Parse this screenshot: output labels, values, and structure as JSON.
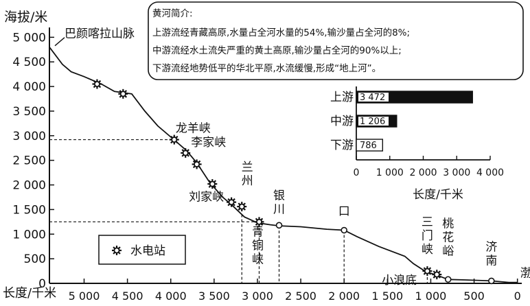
{
  "chart_data": [
    {
      "type": "line",
      "title": "",
      "ylabel": "海拔/米",
      "xlabel": "长度/千米",
      "xlim": [
        5400,
        -50
      ],
      "ylim": [
        0,
        5200
      ],
      "x_reversed": true,
      "x_ticks": [
        5000,
        4500,
        4000,
        3500,
        3000,
        2500,
        2000,
        1500,
        1000,
        500,
        0
      ],
      "x_tick_labels": [
        "5 000",
        "4 500",
        "4 000",
        "3 500",
        "3 000",
        "2 500",
        "2 000",
        "1 500",
        "1 000",
        "500",
        "0"
      ],
      "y_ticks": [
        0,
        500,
        1000,
        1500,
        2000,
        2500,
        3000,
        3500,
        4000,
        4500,
        5000
      ],
      "y_tick_labels": [
        "0",
        "500",
        "1 000",
        "1 500",
        "2 000",
        "2 500",
        "3 000",
        "3 500",
        "4 000",
        "4 500",
        "5 000"
      ],
      "series": [
        {
          "x": [
            5400,
            5250,
            5150,
            5000,
            4800,
            4650,
            4450,
            4300,
            4150,
            3950,
            3820,
            3700,
            3550,
            3400,
            3300,
            3150,
            3000,
            2850,
            2750,
            2500,
            2200,
            2000,
            1850,
            1600,
            1300,
            1200,
            1050,
            950,
            800,
            600,
            300,
            100,
            0
          ],
          "y": [
            4800,
            4450,
            4300,
            4200,
            4050,
            3900,
            3850,
            3500,
            3200,
            2900,
            2700,
            2450,
            2050,
            1750,
            1600,
            1350,
            1230,
            1190,
            1170,
            1150,
            1100,
            1080,
            950,
            750,
            550,
            400,
            230,
            180,
            80,
            70,
            50,
            20,
            20
          ]
        }
      ],
      "stations": [
        {
          "x": 4850,
          "y": 4050
        },
        {
          "x": 4550,
          "y": 3850
        },
        {
          "x": 3960,
          "y": 2920
        },
        {
          "x": 3830,
          "y": 2650
        },
        {
          "x": 3700,
          "y": 2420
        },
        {
          "x": 3520,
          "y": 2020
        },
        {
          "x": 3300,
          "y": 1650
        },
        {
          "x": 3180,
          "y": 1560
        },
        {
          "x": 2980,
          "y": 1250
        },
        {
          "x": 1040,
          "y": 250
        },
        {
          "x": 930,
          "y": 180
        }
      ],
      "points": [
        {
          "x": 2750,
          "y": 1180
        },
        {
          "x": 2000,
          "y": 1080
        },
        {
          "x": 800,
          "y": 80
        },
        {
          "x": 300,
          "y": 50
        }
      ],
      "guides": [
        {
          "y": 2920,
          "x": 3960
        },
        {
          "y": 1250,
          "x": 2980
        }
      ],
      "vlines": [
        3180,
        2980,
        2750,
        2000,
        1040
      ],
      "annotations": [
        {
          "text": "巴颜喀拉山脉",
          "x": 5400,
          "y": 4800
        },
        {
          "text": "龙羊峡",
          "x": 3960,
          "y": 2920
        },
        {
          "text": "李家峡",
          "x": 3830,
          "y": 2650
        },
        {
          "text": "兰州",
          "x": 3180,
          "y": 1560,
          "vertical": true
        },
        {
          "text": "刘家峡",
          "x": 3300,
          "y": 1650
        },
        {
          "text": "银川",
          "x": 2750,
          "y": 1180,
          "vertical": true
        },
        {
          "text": "青铜峡",
          "x": 2980,
          "y": 1250,
          "vertical": true
        },
        {
          "text": "河口",
          "x": 2000,
          "y": 1080,
          "vertical": true
        },
        {
          "text": "三门峡",
          "x": 1040,
          "y": 250,
          "vertical": true
        },
        {
          "text": "桃花峪",
          "x": 800,
          "y": 80,
          "vertical": true
        },
        {
          "text": "小浪底",
          "x": 930,
          "y": 180
        },
        {
          "text": "济南",
          "x": 300,
          "y": 50,
          "vertical": true
        },
        {
          "text": "渤海",
          "x": 0,
          "y": 20
        }
      ],
      "legend": {
        "label": "水电站",
        "icon": "hydropower-station-icon",
        "position": "bottom-left"
      }
    },
    {
      "type": "bar",
      "orientation": "horizontal",
      "categories": [
        "上游",
        "中游",
        "下游"
      ],
      "values": [
        3472,
        1206,
        786
      ],
      "value_labels": [
        "3 472",
        "1 206",
        "786"
      ],
      "xlabel": "长度/千米",
      "xlim": [
        0,
        4000
      ],
      "x_ticks": [
        0,
        1000,
        2000,
        3000,
        4000
      ],
      "x_tick_labels": [
        "0",
        "1 000",
        "2 000",
        "3 000",
        "4 000"
      ],
      "fill_colors": [
        "#111111",
        "#111111",
        "#ffffff"
      ]
    }
  ],
  "note": {
    "title": "黄河简介:",
    "lines": [
      "上游流经青藏高原,水量占全河水量的54%,输沙量占全河的8%;",
      "中游流经水土流失严重的黄土高原,输沙量占全河的90%以上;",
      "下游流经地势低平的华北平原,水流缓慢,形成“地上河”。"
    ]
  }
}
